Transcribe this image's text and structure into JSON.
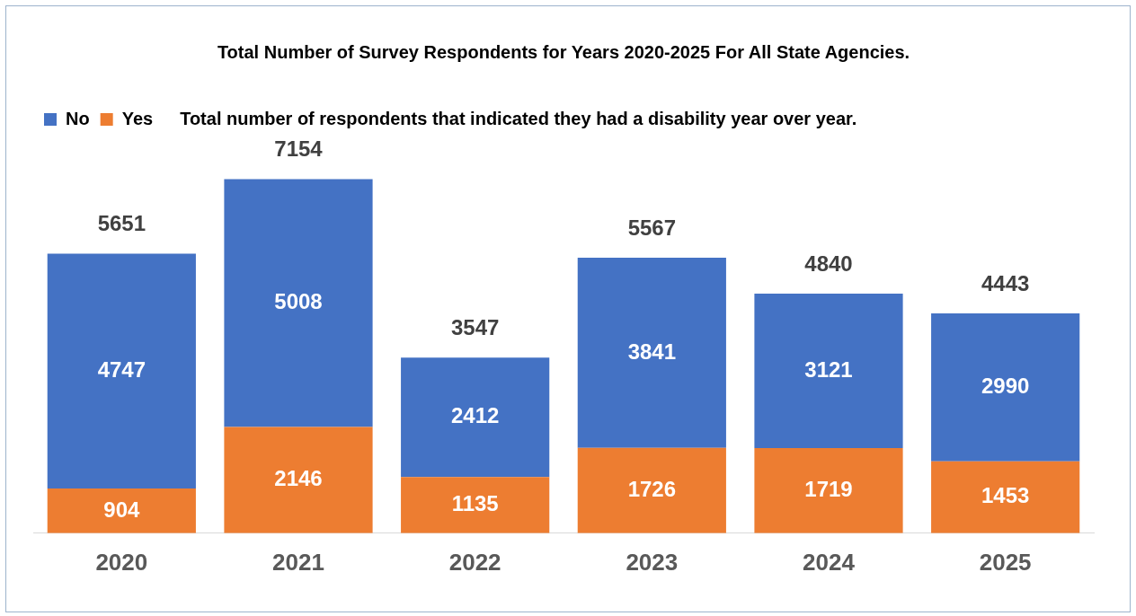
{
  "chart_data": {
    "type": "bar",
    "title": "Total Number of Survey Respondents for Years 2020-2025 For All State Agencies.",
    "subtitle": "Total number of respondents that indicated they had a disability year over year.",
    "categories": [
      "2020",
      "2021",
      "2022",
      "2023",
      "2024",
      "2025"
    ],
    "stacked": true,
    "series": [
      {
        "name": "Yes",
        "color": "#ed7d31",
        "values": [
          904,
          2146,
          1135,
          1726,
          1719,
          1453
        ]
      },
      {
        "name": "No",
        "color": "#4472c4",
        "values": [
          4747,
          5008,
          2412,
          3841,
          3121,
          2990
        ]
      }
    ],
    "totals": [
      "5651",
      "7154",
      "3547",
      "5567",
      "4840",
      "4443"
    ],
    "data_labels": true,
    "legend": "top left",
    "grid": false
  }
}
